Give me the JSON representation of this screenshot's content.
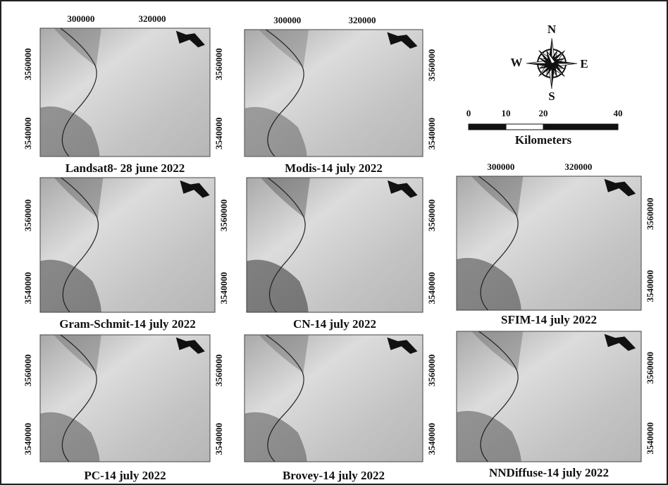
{
  "panels": [
    {
      "caption": "Landsat8- 28 june 2022",
      "x_ticks": [
        "300000",
        "320000"
      ],
      "y_ticks_left": [
        "3560000",
        "3540000"
      ],
      "y_ticks_right": [
        "3560000",
        "3540000"
      ]
    },
    {
      "caption": "Modis-14 july 2022",
      "x_ticks": [
        "300000",
        "320000"
      ],
      "y_ticks_right": [
        "3560000",
        "3540000"
      ]
    },
    {
      "caption": "Gram-Schmit-14 july 2022",
      "y_ticks_left": [
        "3560000",
        "3540000"
      ],
      "y_ticks_right": [
        "3560000",
        "3540000"
      ]
    },
    {
      "caption": "CN-14 july 2022",
      "y_ticks_right": [
        "3560000",
        "3540000"
      ]
    },
    {
      "caption": "SFIM-14 july 2022",
      "x_ticks": [
        "300000",
        "320000"
      ],
      "y_ticks_right": [
        "3560000",
        "3540000"
      ]
    },
    {
      "caption": "PC-14 july 2022",
      "y_ticks_left": [
        "3560000",
        "3540000"
      ],
      "y_ticks_right": [
        "3560000",
        "3540000"
      ]
    },
    {
      "caption": "Brovey-14 july 2022",
      "y_ticks_right": [
        "3560000",
        "3540000"
      ]
    },
    {
      "caption": "NNDiffuse-14 july 2022",
      "y_ticks_right": [
        "3560000",
        "3540000"
      ]
    }
  ],
  "compass": {
    "north": "N",
    "east": "E",
    "south": "S",
    "west": "W"
  },
  "scale_bar": {
    "ticks": [
      0,
      10,
      20,
      40
    ],
    "unit": "Kilometers"
  }
}
